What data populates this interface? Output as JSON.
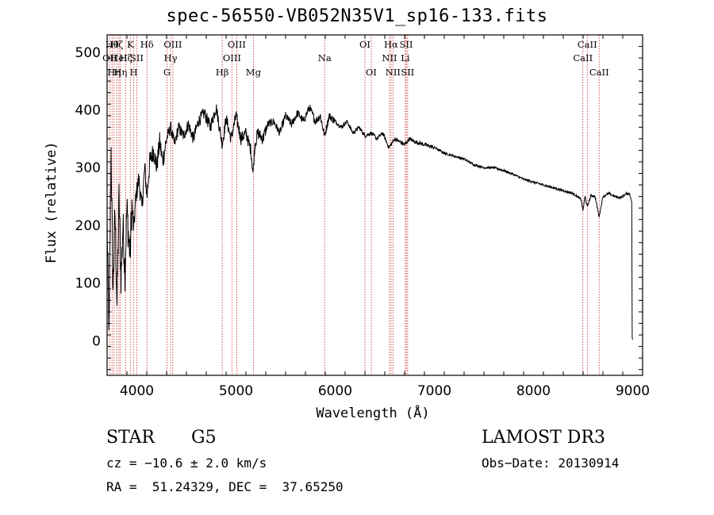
{
  "chart_data": {
    "type": "line",
    "title": "spec-56550-VB052N35V1_sp16-133.fits",
    "xlabel": "Wavelength (Å)",
    "ylabel": "Flux (relative)",
    "xlim": [
      3700,
      9100
    ],
    "ylim": [
      -60,
      530
    ],
    "xticks": [
      4000,
      5000,
      6000,
      7000,
      8000,
      9000
    ],
    "yticks": [
      0,
      100,
      200,
      300,
      400,
      500
    ],
    "grid": false,
    "series": [
      {
        "name": "flux",
        "x": [
          3700,
          3720,
          3740,
          3760,
          3780,
          3800,
          3820,
          3840,
          3860,
          3880,
          3900,
          3920,
          3933,
          3950,
          3968,
          3990,
          4020,
          4050,
          4080,
          4102,
          4130,
          4170,
          4200,
          4230,
          4260,
          4300,
          4340,
          4380,
          4420,
          4470,
          4520,
          4570,
          4620,
          4680,
          4740,
          4800,
          4861,
          4900,
          4950,
          5000,
          5050,
          5100,
          5150,
          5172,
          5190,
          5220,
          5270,
          5320,
          5380,
          5440,
          5500,
          5560,
          5620,
          5680,
          5740,
          5800,
          5850,
          5893,
          5940,
          6000,
          6060,
          6120,
          6180,
          6240,
          6300,
          6363,
          6420,
          6480,
          6540,
          6563,
          6600,
          6650,
          6700,
          6750,
          6800,
          6900,
          7000,
          7100,
          7200,
          7300,
          7400,
          7500,
          7600,
          7700,
          7800,
          7900,
          8000,
          8100,
          8200,
          8300,
          8400,
          8480,
          8498,
          8520,
          8542,
          8580,
          8620,
          8662,
          8700,
          8760,
          8820,
          8880,
          8940,
          8970,
          8990,
          8995,
          9000
        ],
        "values": [
          195,
          15,
          330,
          90,
          220,
          60,
          250,
          110,
          200,
          120,
          230,
          170,
          150,
          240,
          190,
          250,
          280,
          230,
          300,
          250,
          310,
          330,
          300,
          345,
          310,
          350,
          370,
          340,
          370,
          355,
          375,
          350,
          380,
          395,
          370,
          405,
          340,
          385,
          350,
          390,
          350,
          360,
          330,
          290,
          340,
          360,
          350,
          375,
          380,
          360,
          390,
          375,
          395,
          380,
          405,
          380,
          390,
          355,
          390,
          380,
          370,
          380,
          360,
          370,
          355,
          360,
          350,
          360,
          335,
          340,
          350,
          345,
          340,
          350,
          345,
          340,
          335,
          325,
          320,
          315,
          305,
          300,
          300,
          295,
          288,
          280,
          275,
          270,
          265,
          260,
          255,
          245,
          225,
          250,
          232,
          252,
          250,
          215,
          250,
          255,
          250,
          248,
          255,
          255,
          240,
          5,
          2
        ]
      }
    ],
    "line_markers": [
      {
        "wavelength": 3727,
        "label": "OII",
        "row": 1
      },
      {
        "wavelength": 3750,
        "label": "Hθ",
        "row": 0
      },
      {
        "wavelength": 3771,
        "label": "Hη",
        "row": 2
      },
      {
        "wavelength": 3798,
        "label": "Hζ",
        "row": 0
      },
      {
        "wavelength": 3820,
        "label": "HeI",
        "row": 1
      },
      {
        "wavelength": 3835,
        "label": "Hη",
        "row": 2
      },
      {
        "wavelength": 3889,
        "label": "Hζ",
        "row": 1
      },
      {
        "wavelength": 3934,
        "label": "K",
        "row": 0
      },
      {
        "wavelength": 3968,
        "label": "H",
        "row": 2
      },
      {
        "wavelength": 4000,
        "label": "SII",
        "row": 1
      },
      {
        "wavelength": 4102,
        "label": "Hδ",
        "row": 0
      },
      {
        "wavelength": 4304,
        "label": "G",
        "row": 2
      },
      {
        "wavelength": 4340,
        "label": "Hγ",
        "row": 1
      },
      {
        "wavelength": 4363,
        "label": "OIII",
        "row": 0
      },
      {
        "wavelength": 4861,
        "label": "Hβ",
        "row": 2
      },
      {
        "wavelength": 4959,
        "label": "OIII",
        "row": 1
      },
      {
        "wavelength": 5007,
        "label": "OIII",
        "row": 0
      },
      {
        "wavelength": 5175,
        "label": "Mg",
        "row": 2
      },
      {
        "wavelength": 5894,
        "label": "Na",
        "row": 1
      },
      {
        "wavelength": 6300,
        "label": "OI",
        "row": 0
      },
      {
        "wavelength": 6364,
        "label": "OI",
        "row": 2
      },
      {
        "wavelength": 6548,
        "label": "NII",
        "row": 1
      },
      {
        "wavelength": 6563,
        "label": "Hα",
        "row": 0
      },
      {
        "wavelength": 6583,
        "label": "NII",
        "row": 2
      },
      {
        "wavelength": 6707,
        "label": "Li",
        "row": 1
      },
      {
        "wavelength": 6716,
        "label": "SII",
        "row": 0
      },
      {
        "wavelength": 6731,
        "label": "SII",
        "row": 2
      },
      {
        "wavelength": 8498,
        "label": "CaII",
        "row": 1
      },
      {
        "wavelength": 8542,
        "label": "CaII",
        "row": 0
      },
      {
        "wavelength": 8662,
        "label": "CaII",
        "row": 2
      }
    ]
  },
  "info": {
    "object_class": "STAR",
    "subclass": "G5",
    "survey": "LAMOST DR3",
    "cz": "cz = −10.6 ± 2.0 km/s",
    "obs_date": "Obs−Date: 20130914",
    "coords": "RA =  51.24329, DEC =  37.65250"
  },
  "colors": {
    "spectrum": "#000000",
    "marker_line": "#cc2222",
    "axis": "#000000"
  }
}
